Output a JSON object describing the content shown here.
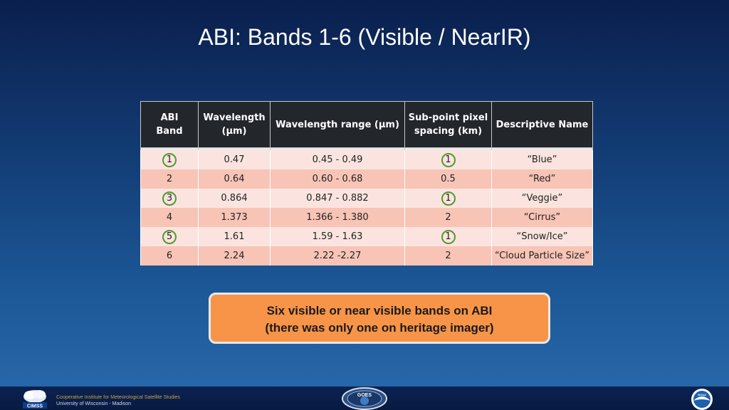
{
  "slide": {
    "title": "ABI: Bands 1-6 (Visible / NearIR)"
  },
  "table": {
    "headers": [
      [
        "ABI",
        "Band"
      ],
      [
        "Wavelength",
        "(µm)"
      ],
      [
        "Wavelength range  (µm)"
      ],
      [
        "Sub-point pixel",
        "spacing (km)"
      ],
      [
        "Descriptive Name"
      ]
    ],
    "rows": [
      [
        "1",
        "0.47",
        "0.45 - 0.49",
        "1",
        "“Blue”"
      ],
      [
        "2",
        "0.64",
        "0.60 - 0.68",
        "0.5",
        "“Red”"
      ],
      [
        "3",
        "0.864",
        "0.847 - 0.882",
        "1",
        "“Veggie”"
      ],
      [
        "4",
        "1.373",
        "1.366 - 1.380",
        "2",
        "“Cirrus”"
      ],
      [
        "5",
        "1.61",
        "1.59 - 1.63",
        "1",
        "“Snow/Ice”"
      ],
      [
        "6",
        "2.24",
        "2.22 -2.27",
        "2",
        "“Cloud Particle Size”"
      ]
    ],
    "circled_cells": [
      [
        0,
        0
      ],
      [
        2,
        0
      ],
      [
        4,
        0
      ],
      [
        0,
        3
      ],
      [
        2,
        3
      ],
      [
        4,
        3
      ]
    ],
    "colors": {
      "header": "#23262b",
      "row_light": "#fbe4df",
      "row_dark": "#f8c4b6",
      "circle": "#4f9a2f"
    }
  },
  "callout": {
    "line1": "Six visible or near visible bands on ABI",
    "line2": "(there was only one on heritage imager)",
    "color": "#f79448"
  },
  "footer": {
    "cimss_line1": "Cooperative Institute for Meteorological Satellite Studies",
    "cimss_line2": "University of Wisconsin - Madison",
    "logos": {
      "cimss": {
        "icon": "cimss-logo",
        "text": "CIMSS"
      },
      "goes": {
        "icon": "goes-r-logo",
        "text": "GOES"
      },
      "noaa": {
        "icon": "noaa-logo",
        "text": "NOAA"
      }
    }
  }
}
